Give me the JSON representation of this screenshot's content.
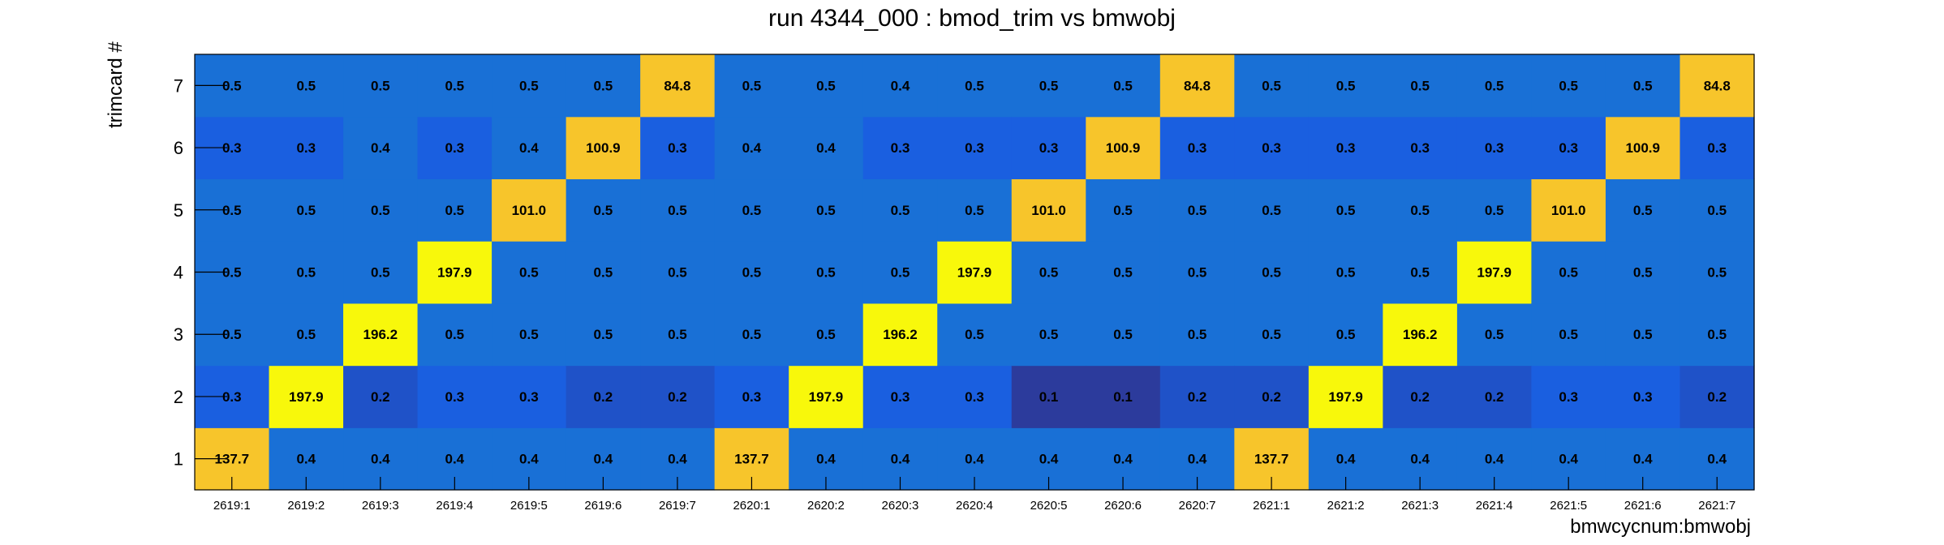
{
  "chart_data": {
    "type": "heatmap",
    "title": "run 4344_000 : bmod_trim vs bmwobj",
    "xlabel": "bmwcycnum:bmwobj",
    "ylabel": "trimcard #",
    "x_categories": [
      "2619:1",
      "2619:2",
      "2619:3",
      "2619:4",
      "2619:5",
      "2619:6",
      "2619:7",
      "2620:1",
      "2620:2",
      "2620:3",
      "2620:4",
      "2620:5",
      "2620:6",
      "2620:7",
      "2621:1",
      "2621:2",
      "2621:3",
      "2621:4",
      "2621:5",
      "2621:6",
      "2621:7"
    ],
    "y_categories": [
      "1",
      "2",
      "3",
      "4",
      "5",
      "6",
      "7"
    ],
    "values": [
      [
        137.7,
        0.3,
        0.5,
        0.5,
        0.5,
        0.3,
        0.5
      ],
      [
        0.4,
        197.9,
        0.5,
        0.5,
        0.5,
        0.3,
        0.5
      ],
      [
        0.4,
        0.2,
        196.2,
        0.5,
        0.5,
        0.4,
        0.5
      ],
      [
        0.4,
        0.3,
        0.5,
        197.9,
        0.5,
        0.3,
        0.5
      ],
      [
        0.4,
        0.3,
        0.5,
        0.5,
        101.0,
        0.4,
        0.5
      ],
      [
        0.4,
        0.2,
        0.5,
        0.5,
        0.5,
        100.9,
        0.5
      ],
      [
        0.4,
        0.2,
        0.5,
        0.5,
        0.5,
        0.3,
        84.8
      ],
      [
        137.7,
        0.3,
        0.5,
        0.5,
        0.5,
        0.4,
        0.5
      ],
      [
        0.4,
        197.9,
        0.5,
        0.5,
        0.5,
        0.4,
        0.5
      ],
      [
        0.4,
        0.3,
        196.2,
        0.5,
        0.5,
        0.3,
        0.4
      ],
      [
        0.4,
        0.3,
        0.5,
        197.9,
        0.5,
        0.3,
        0.5
      ],
      [
        0.4,
        0.1,
        0.5,
        0.5,
        101.0,
        0.3,
        0.5
      ],
      [
        0.4,
        0.1,
        0.5,
        0.5,
        0.5,
        100.9,
        0.5
      ],
      [
        0.4,
        0.2,
        0.5,
        0.5,
        0.5,
        0.3,
        84.8
      ],
      [
        137.7,
        0.2,
        0.5,
        0.5,
        0.5,
        0.3,
        0.5
      ],
      [
        0.4,
        197.9,
        0.5,
        0.5,
        0.5,
        0.3,
        0.5
      ],
      [
        0.4,
        0.2,
        196.2,
        0.5,
        0.5,
        0.3,
        0.5
      ],
      [
        0.4,
        0.2,
        0.5,
        197.9,
        0.5,
        0.3,
        0.5
      ],
      [
        0.4,
        0.3,
        0.5,
        0.5,
        101.0,
        0.3,
        0.5
      ],
      [
        0.4,
        0.3,
        0.5,
        0.5,
        0.5,
        100.9,
        0.5
      ],
      [
        0.4,
        0.2,
        0.5,
        0.5,
        0.5,
        0.3,
        84.8
      ]
    ],
    "values_layout": "values[x_index][y_index]",
    "colors": {
      "lowest": "#2c3b9c",
      "low": "#1f52c8",
      "base": "#1970d6",
      "mid": "#1a5fe0",
      "high_yellow_orange": "#f7c52b",
      "highest_yellow": "#f8f80b"
    },
    "grid": false,
    "legend": "none"
  }
}
